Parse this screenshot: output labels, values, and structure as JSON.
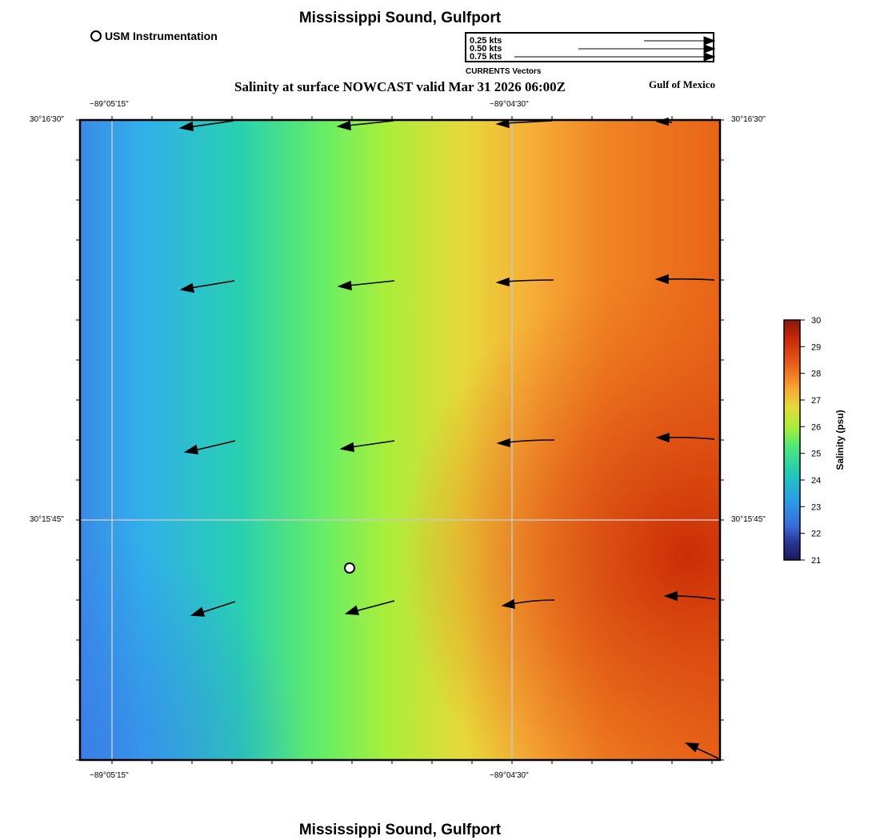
{
  "header": {
    "title": "Mississippi Sound, Gulfport",
    "subtitle": "Salinity at surface NOWCAST valid Mar 31 2026 06:00Z",
    "region": "Gulf of Mexico",
    "footer_title": "Mississippi Sound, Gulfport"
  },
  "station_legend": {
    "label": "USM Instrumentation"
  },
  "vector_legend": {
    "rows": [
      "0.25 kts",
      "0.50 kts",
      "0.75 kts"
    ],
    "caption": "CURRENTS Vectors"
  },
  "axes": {
    "x_ticks": [
      "−89°05'15\"",
      "−89°04'30\""
    ],
    "y_ticks": [
      "30°16'30\"",
      "30°15'45\""
    ]
  },
  "colorbar": {
    "label": "Salinity (psu)",
    "min": 21,
    "max": 30,
    "ticks": [
      "30",
      "29",
      "28",
      "27",
      "26",
      "25",
      "24",
      "23",
      "22",
      "21"
    ],
    "colors": [
      "#1a1a5a",
      "#3a6ad8",
      "#2a9ee8",
      "#22c0c8",
      "#3ee88a",
      "#a6ee3a",
      "#e6d83a",
      "#f6a232",
      "#e85a1a",
      "#c82a0a",
      "#8a1a0a"
    ]
  },
  "map": {
    "station_marker": "usm-instrumentation-marker",
    "current_vectors_note": "arrows point west/southwest"
  }
}
